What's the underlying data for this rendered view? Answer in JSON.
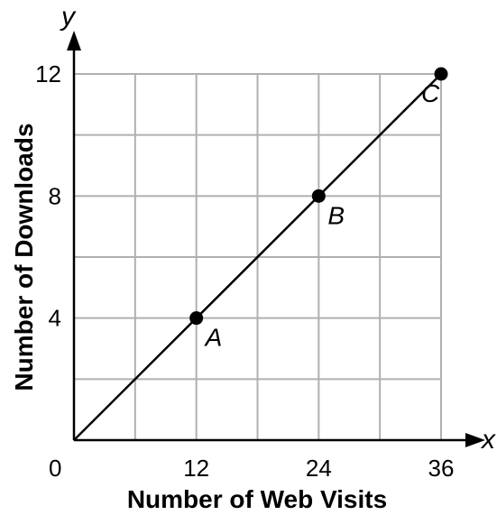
{
  "chart_data": {
    "type": "line",
    "xlabel": "Number of Web Visits",
    "ylabel": "Number of Downloads",
    "x_axis_variable": "x",
    "y_axis_variable": "y",
    "xlim": [
      0,
      36
    ],
    "ylim": [
      0,
      12
    ],
    "x_grid_step": 6,
    "y_grid_step": 2,
    "grid": true,
    "origin_label": "0",
    "x_ticks": [
      {
        "value": 12,
        "label": "12"
      },
      {
        "value": 24,
        "label": "24"
      },
      {
        "value": 36,
        "label": "36"
      }
    ],
    "y_ticks": [
      {
        "value": 4,
        "label": "4"
      },
      {
        "value": 8,
        "label": "8"
      },
      {
        "value": 12,
        "label": "12"
      }
    ],
    "line": {
      "x": [
        0,
        36
      ],
      "y": [
        0,
        12
      ]
    },
    "points": [
      {
        "label": "A",
        "x": 12,
        "y": 4
      },
      {
        "label": "B",
        "x": 24,
        "y": 8
      },
      {
        "label": "C",
        "x": 36,
        "y": 12
      }
    ]
  }
}
